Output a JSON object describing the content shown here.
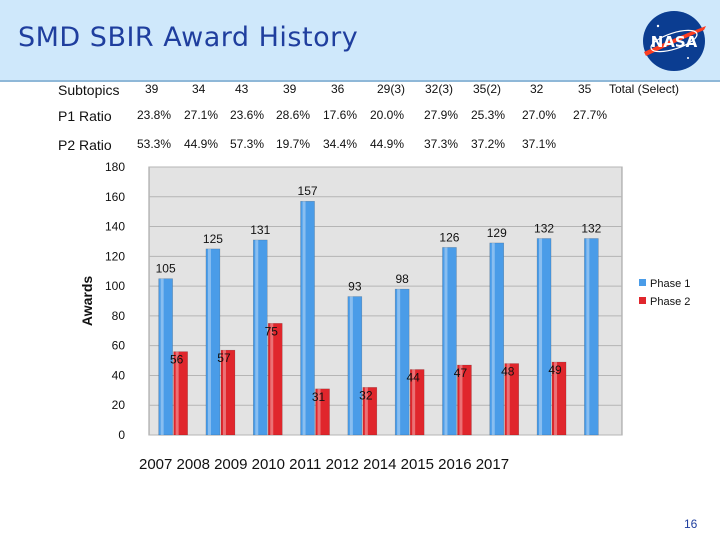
{
  "slide": {
    "title": "SMD SBIR Award History",
    "page_number": "16",
    "logo_text": "NASA"
  },
  "table": {
    "subtopics_label": "Subtopics",
    "subtopics": [
      "39",
      "34",
      "43",
      "39",
      "36",
      "29(3)",
      "32(3)",
      "35(2)",
      "32",
      "35",
      "Total (Select)"
    ],
    "p1_label": "P1 Ratio",
    "p1": [
      "23.8%",
      "27.1%",
      "23.6%",
      "28.6%",
      "17.6%",
      "20.0%",
      "27.9%",
      "25.3%",
      "27.0%",
      "27.7%"
    ],
    "p2_label": "P2 Ratio",
    "p2": [
      "53.3%",
      "44.9%",
      "57.3%",
      "19.7%",
      "34.4%",
      "44.9%",
      "37.3%",
      "37.2%",
      "37.1%"
    ]
  },
  "years_label": "2007  2008  2009  2010  2011  2012  2014  2015  2016  2017",
  "colors": {
    "phase1": "#4a9ce8",
    "phase2": "#e0262c",
    "plot_bg": "#e3e3e3",
    "title": "#1f3e9e"
  },
  "chart_data": {
    "type": "bar",
    "title": "",
    "xlabel": "",
    "ylabel": "Awards",
    "ylim": [
      0,
      180
    ],
    "yticks": [
      0,
      20,
      40,
      60,
      80,
      100,
      120,
      140,
      160,
      180
    ],
    "grid": true,
    "legend": "right",
    "categories": [
      "2007",
      "2008",
      "2009",
      "2010",
      "2011",
      "2012",
      "2014",
      "2015",
      "2016",
      "2017"
    ],
    "series": [
      {
        "name": "Phase 1",
        "values": [
          105,
          125,
          131,
          157,
          93,
          98,
          126,
          129,
          132,
          132
        ]
      },
      {
        "name": "Phase 2",
        "values": [
          56,
          57,
          75,
          31,
          32,
          44,
          47,
          48,
          49,
          null
        ]
      }
    ]
  }
}
